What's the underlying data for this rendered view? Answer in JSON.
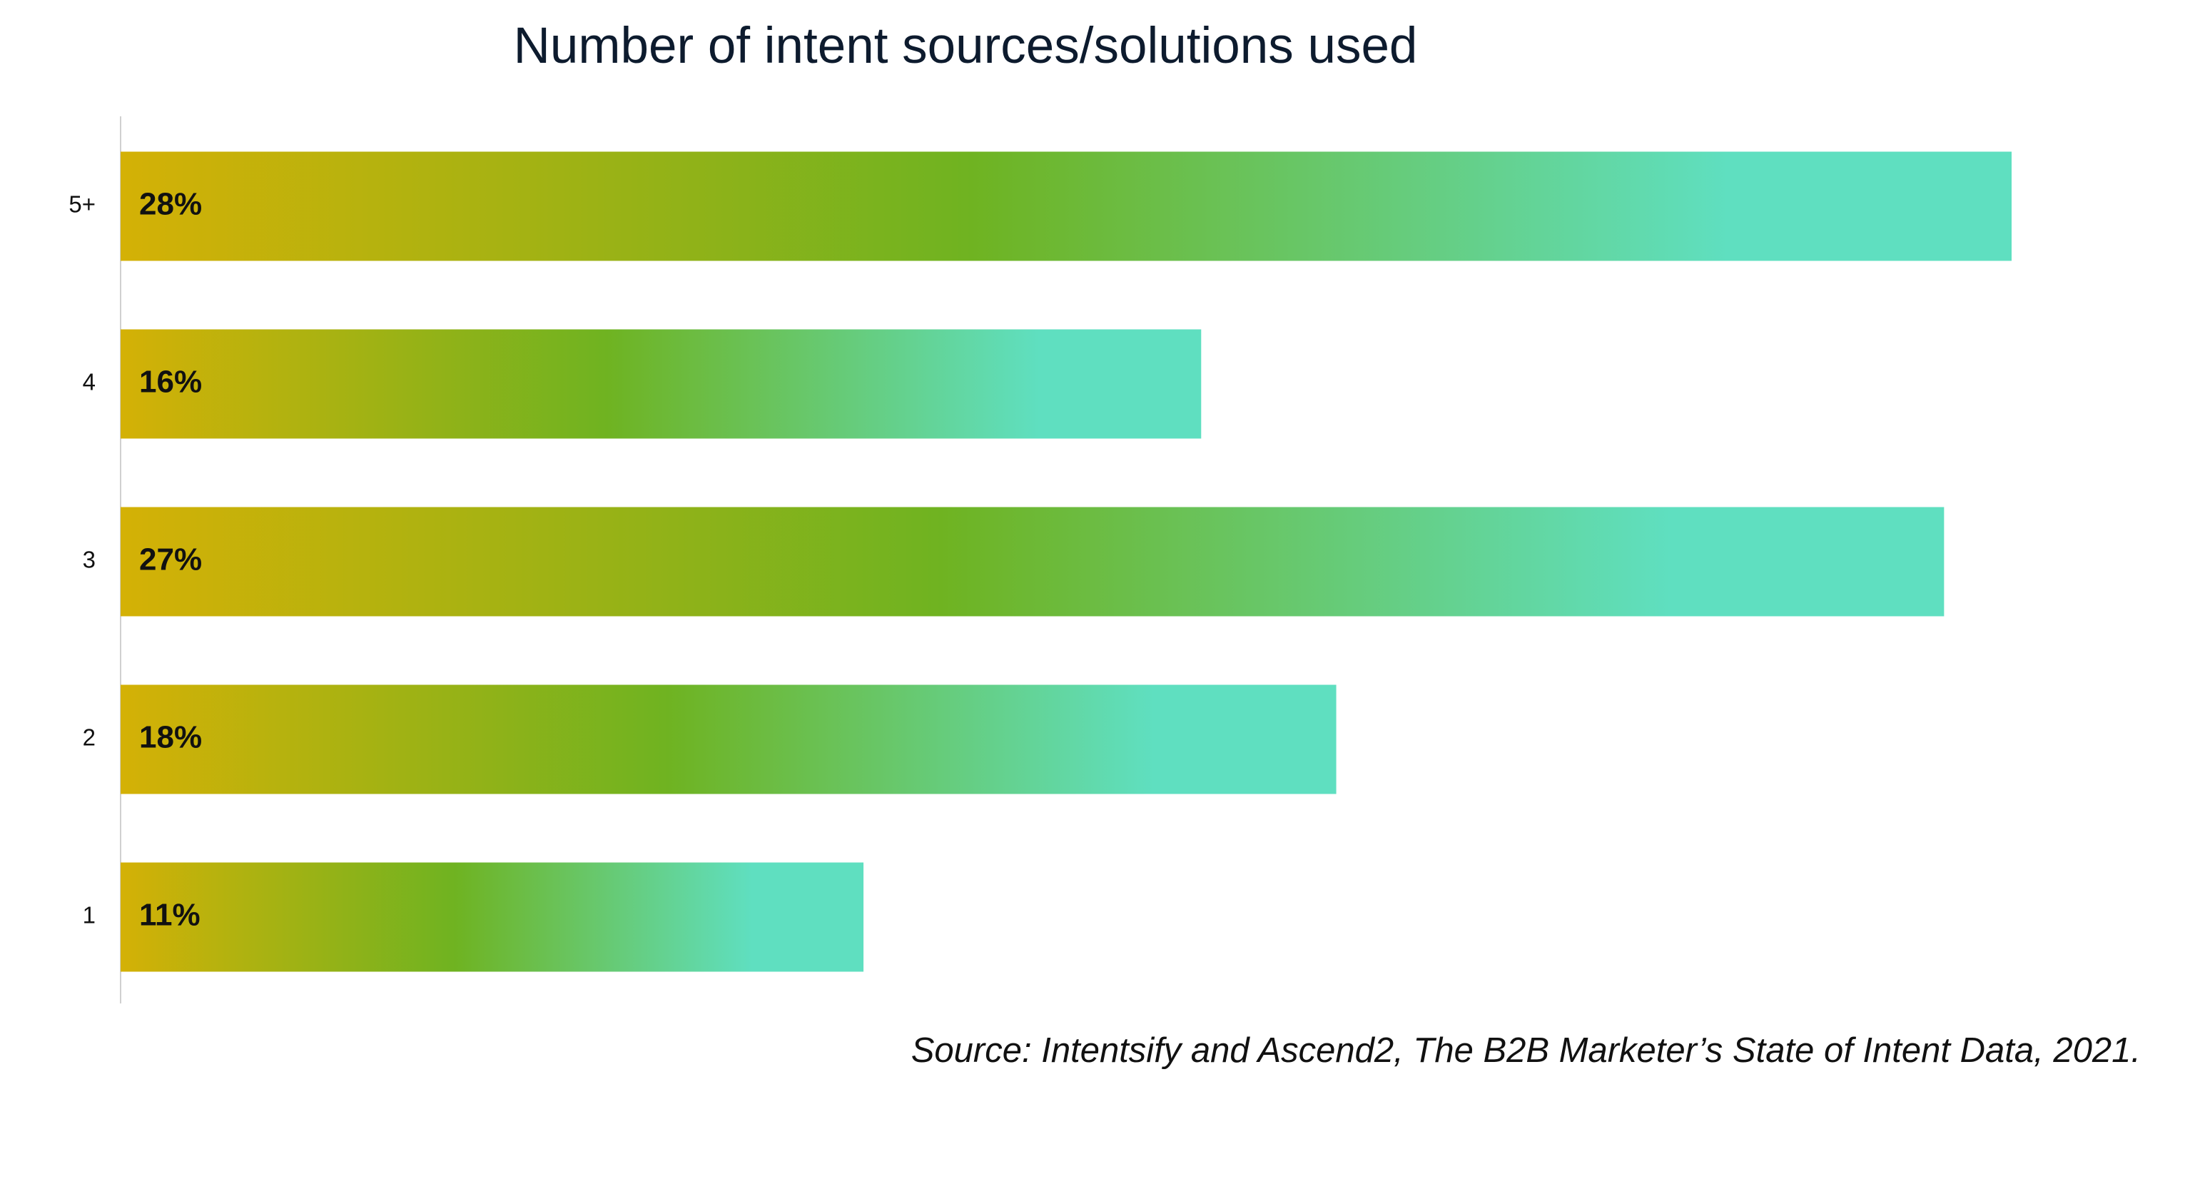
{
  "chart_data": {
    "type": "bar",
    "orientation": "horizontal",
    "title": "Number of intent sources/solutions used",
    "categories": [
      "5+",
      "4",
      "3",
      "2",
      "1"
    ],
    "values": [
      28,
      16,
      27,
      18,
      11
    ],
    "value_labels": [
      "28%",
      "16%",
      "27%",
      "18%",
      "11%"
    ],
    "gradient": [
      "#d4b106",
      "#6fb321",
      "#5fdfc0"
    ],
    "annotation": "Source: Intentsify and Ascend2, The B2B Marketer’s State of Intent Data, 2021."
  }
}
